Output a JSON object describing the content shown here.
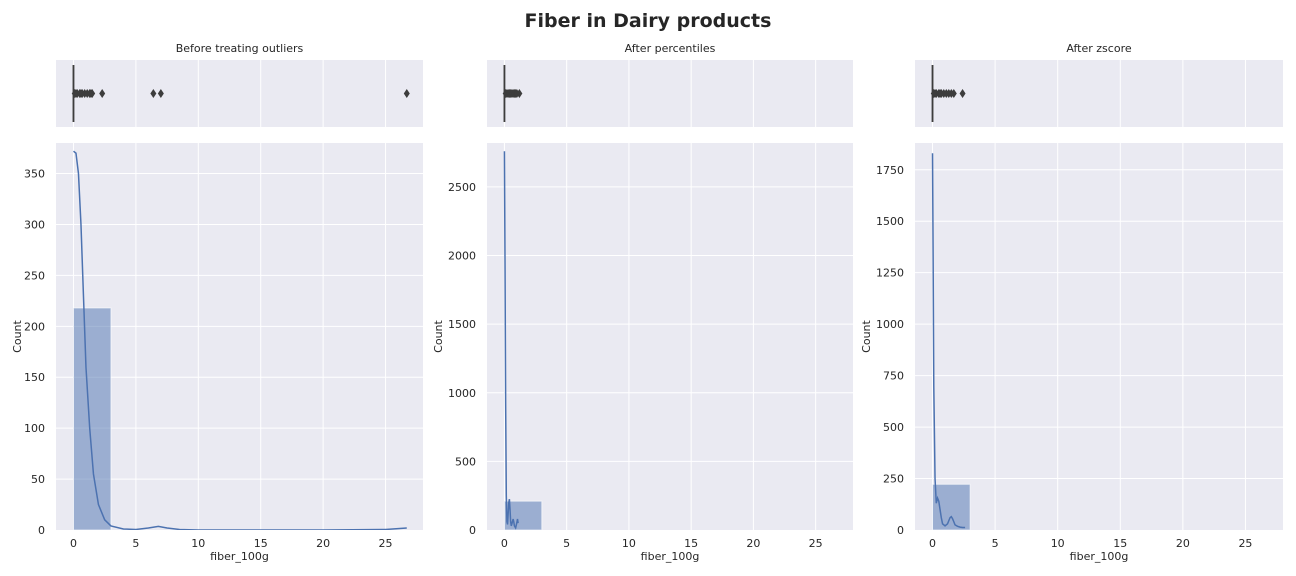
{
  "figure": {
    "title": "Fiber in Dairy products"
  },
  "chart_data": [
    {
      "type": "histogram+boxplot",
      "title": "Before treating outliers",
      "xlabel": "fiber_100g",
      "ylabel": "Count",
      "xlim": [
        -1.4,
        28.0
      ],
      "xticks": [
        0,
        5,
        10,
        15,
        20,
        25
      ],
      "ylim": [
        0,
        380
      ],
      "yticks": [
        0,
        50,
        100,
        150,
        200,
        250,
        300,
        350
      ],
      "grid": true,
      "histogram": {
        "bins": [
          {
            "x0": 0,
            "x1": 3.0,
            "count": 218
          }
        ]
      },
      "kde": [
        [
          0,
          372
        ],
        [
          0.2,
          370
        ],
        [
          0.4,
          350
        ],
        [
          0.6,
          300
        ],
        [
          0.8,
          230
        ],
        [
          1.0,
          160
        ],
        [
          1.3,
          100
        ],
        [
          1.6,
          55
        ],
        [
          2.0,
          25
        ],
        [
          2.5,
          10
        ],
        [
          3.0,
          4
        ],
        [
          4.0,
          1
        ],
        [
          5.0,
          0.5
        ],
        [
          6.0,
          2
        ],
        [
          6.8,
          3.5
        ],
        [
          7.5,
          2
        ],
        [
          8.5,
          0.5
        ],
        [
          10,
          0
        ],
        [
          15,
          0
        ],
        [
          20,
          0
        ],
        [
          25,
          0.5
        ],
        [
          26.7,
          2
        ]
      ],
      "boxplot": {
        "median": 0,
        "q1": 0,
        "q3": 0,
        "whisker_low": 0,
        "whisker_high": 0,
        "outliers": [
          0.1,
          0.2,
          0.3,
          0.5,
          0.6,
          0.7,
          0.9,
          1.1,
          1.3,
          1.4,
          1.5,
          2.3,
          6.4,
          7.0,
          26.7
        ]
      }
    },
    {
      "type": "histogram+boxplot",
      "title": "After percentiles",
      "xlabel": "fiber_100g",
      "ylabel": "Count",
      "xlim": [
        -1.4,
        28.0
      ],
      "xticks": [
        0,
        5,
        10,
        15,
        20,
        25
      ],
      "ylim": [
        0,
        2820
      ],
      "yticks": [
        0,
        500,
        1000,
        1500,
        2000,
        2500
      ],
      "grid": true,
      "histogram": {
        "bins": [
          {
            "x0": 0,
            "x1": 3.0,
            "count": 210
          }
        ]
      },
      "kde": [
        [
          0,
          2760
        ],
        [
          0.05,
          1900
        ],
        [
          0.1,
          900
        ],
        [
          0.15,
          250
        ],
        [
          0.2,
          60
        ],
        [
          0.25,
          40
        ],
        [
          0.3,
          120
        ],
        [
          0.35,
          200
        ],
        [
          0.4,
          225
        ],
        [
          0.45,
          150
        ],
        [
          0.5,
          60
        ],
        [
          0.55,
          30
        ],
        [
          0.6,
          45
        ],
        [
          0.7,
          80
        ],
        [
          0.75,
          60
        ],
        [
          0.8,
          30
        ],
        [
          0.9,
          15
        ],
        [
          1.0,
          55
        ],
        [
          1.05,
          80
        ],
        [
          1.1,
          50
        ]
      ],
      "boxplot": {
        "median": 0,
        "q1": 0,
        "q3": 0,
        "whisker_low": 0,
        "whisker_high": 0,
        "outliers": [
          0.1,
          0.2,
          0.3,
          0.4,
          0.5,
          0.6,
          0.7,
          0.8,
          0.9,
          1.0,
          1.2
        ]
      }
    },
    {
      "type": "histogram+boxplot",
      "title": "After zscore",
      "xlabel": "fiber_100g",
      "ylabel": "Count",
      "xlim": [
        -1.4,
        28.0
      ],
      "xticks": [
        0,
        5,
        10,
        15,
        20,
        25
      ],
      "ylim": [
        0,
        1880
      ],
      "yticks": [
        0,
        250,
        500,
        750,
        1000,
        1250,
        1500,
        1750
      ],
      "grid": true,
      "histogram": {
        "bins": [
          {
            "x0": 0,
            "x1": 3.0,
            "count": 222
          }
        ]
      },
      "kde": [
        [
          0,
          1830
        ],
        [
          0.05,
          1300
        ],
        [
          0.1,
          700
        ],
        [
          0.2,
          250
        ],
        [
          0.3,
          130
        ],
        [
          0.4,
          155
        ],
        [
          0.5,
          140
        ],
        [
          0.6,
          100
        ],
        [
          0.7,
          60
        ],
        [
          0.8,
          30
        ],
        [
          1.0,
          20
        ],
        [
          1.2,
          30
        ],
        [
          1.4,
          60
        ],
        [
          1.5,
          65
        ],
        [
          1.6,
          55
        ],
        [
          1.7,
          40
        ],
        [
          1.8,
          25
        ],
        [
          2.0,
          18
        ],
        [
          2.2,
          14
        ],
        [
          2.4,
          12
        ],
        [
          2.6,
          12
        ]
      ],
      "boxplot": {
        "median": 0,
        "q1": 0,
        "q3": 0,
        "whisker_low": 0,
        "whisker_high": 0,
        "outliers": [
          0.1,
          0.2,
          0.3,
          0.5,
          0.6,
          0.7,
          0.9,
          1.1,
          1.3,
          1.5,
          1.7,
          2.4
        ]
      }
    }
  ],
  "colors": {
    "axes_background": "#EAEAF2",
    "grid": "#FFFFFF",
    "hist_fill": "#4C72B0",
    "kde_line": "#4C72B0",
    "box_line": "#3D3D3D",
    "outlier": "#3D3D3D"
  }
}
